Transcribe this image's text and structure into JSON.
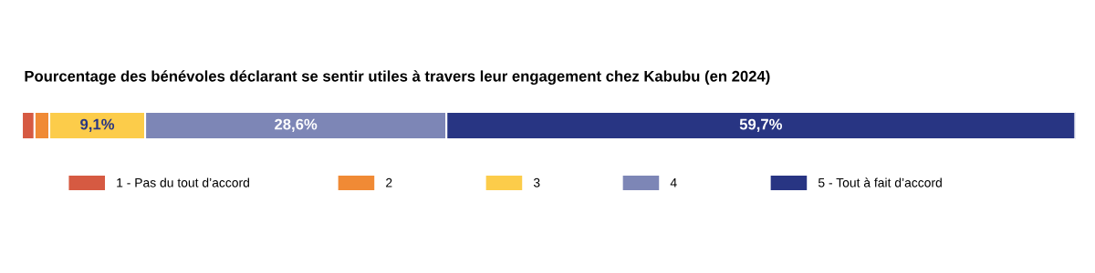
{
  "chart_data": {
    "type": "bar",
    "orientation": "horizontal",
    "stacked": true,
    "title": "Pourcentage des bénévoles déclarant se sentir utiles à travers leur engagement chez Kabubu (en 2024)",
    "categories": [
      null
    ],
    "series": [
      {
        "name": "1 - Pas du tout d’accord",
        "color": "#d65a42",
        "values": [
          1.2
        ],
        "value_labels": [
          null
        ]
      },
      {
        "name": "2",
        "color": "#f08a35",
        "values": [
          1.4
        ],
        "value_labels": [
          null
        ]
      },
      {
        "name": "3",
        "color": "#fccc4a",
        "values": [
          9.1
        ],
        "value_labels": [
          "9,1%"
        ]
      },
      {
        "name": "4",
        "color": "#7d86b6",
        "values": [
          28.6
        ],
        "value_labels": [
          "28,6%"
        ]
      },
      {
        "name": "5 - Tout à fait d’accord",
        "color": "#283583",
        "values": [
          59.7
        ],
        "value_labels": [
          "59,7%"
        ]
      }
    ],
    "tick_labels": false,
    "grid": false,
    "legend": "bottom"
  }
}
